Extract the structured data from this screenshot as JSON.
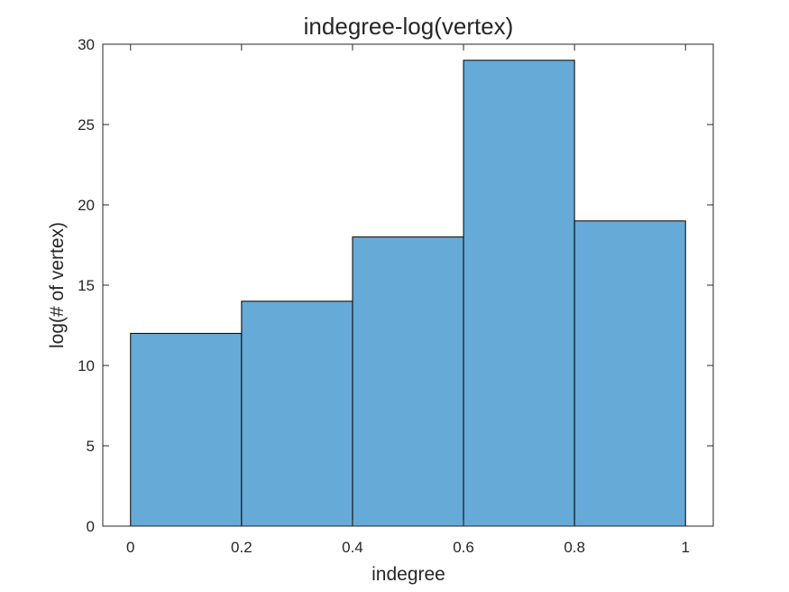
{
  "chart_data": {
    "type": "bar",
    "title": "indegree-log(vertex)",
    "xlabel": "indegree",
    "ylabel": "log(# of vertex)",
    "bins": [
      {
        "start": 0.0,
        "end": 0.2,
        "value": 12
      },
      {
        "start": 0.2,
        "end": 0.4,
        "value": 14
      },
      {
        "start": 0.4,
        "end": 0.6,
        "value": 18
      },
      {
        "start": 0.6,
        "end": 0.8,
        "value": 29
      },
      {
        "start": 0.8,
        "end": 1.0,
        "value": 19
      }
    ],
    "xlim": [
      -0.05,
      1.05
    ],
    "ylim": [
      0,
      30
    ],
    "xticks": [
      0,
      0.2,
      0.4,
      0.6,
      0.8,
      1
    ],
    "xtick_labels": [
      "0",
      "0.2",
      "0.4",
      "0.6",
      "0.8",
      "1"
    ],
    "yticks": [
      0,
      5,
      10,
      15,
      20,
      25,
      30
    ],
    "ytick_labels": [
      "0",
      "5",
      "10",
      "15",
      "20",
      "25",
      "30"
    ],
    "bar_color": "#66aad7",
    "edge_color": "#000000",
    "grid": false,
    "legend": "none"
  }
}
